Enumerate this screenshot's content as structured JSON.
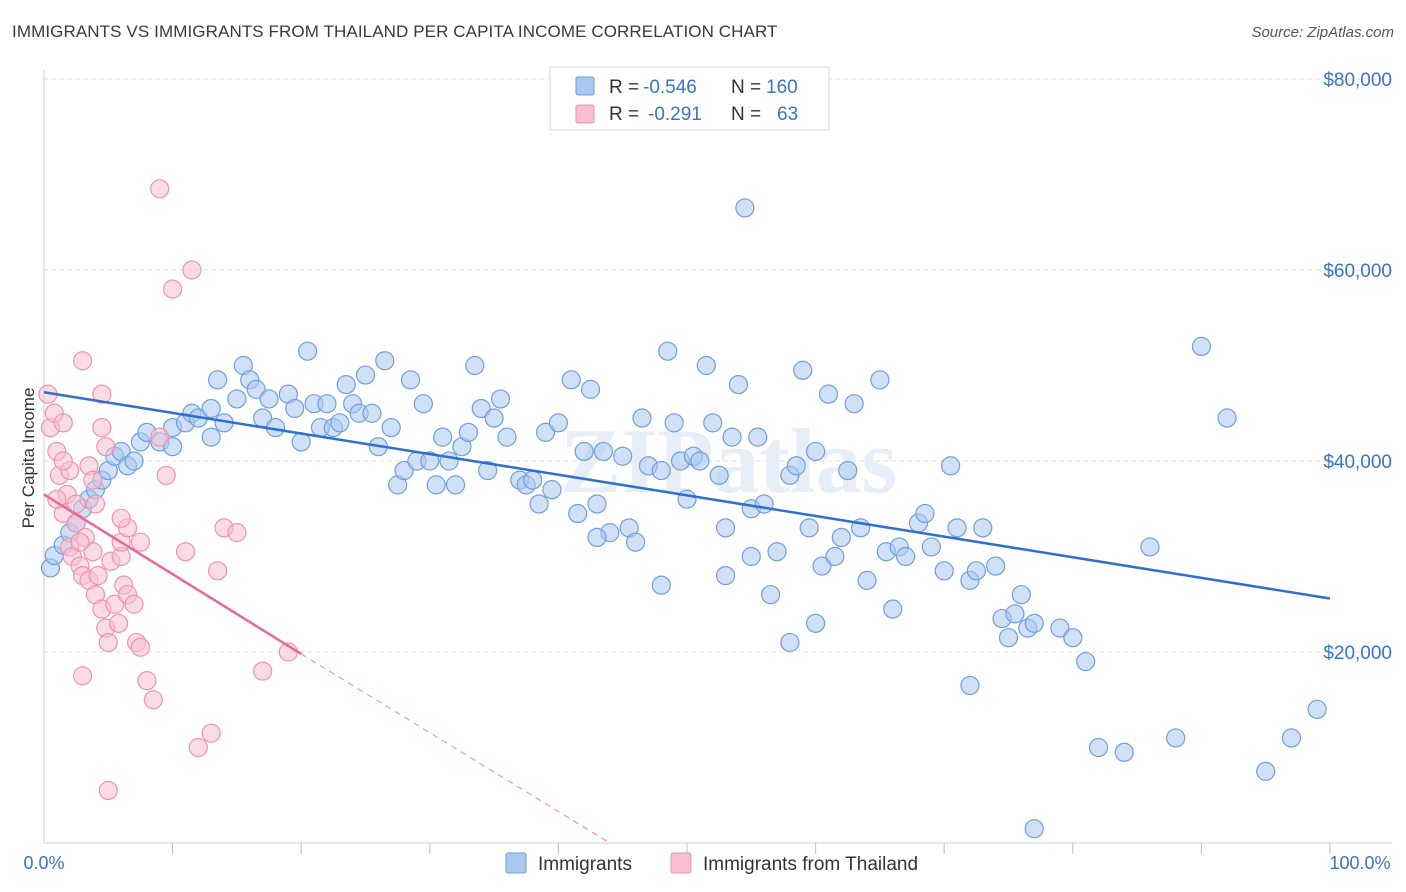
{
  "header": {
    "title": "IMMIGRANTS VS IMMIGRANTS FROM THAILAND PER CAPITA INCOME CORRELATION CHART",
    "source": "Source: ZipAtlas.com"
  },
  "watermark": "ZIPatlas",
  "legend_top": [
    {
      "r_label": "R =",
      "r_value": "-0.546",
      "n_label": "N =",
      "n_value": "160"
    },
    {
      "r_label": "R =",
      "r_value": "-0.291",
      "n_label": "N =",
      "n_value": "63"
    }
  ],
  "legend_bottom": [
    "Immigrants",
    "Immigrants from Thailand"
  ],
  "colors": {
    "blue_fill": "#a9c8f0",
    "blue_stroke": "#6f9fdd",
    "blue_line": "#2e6fd0",
    "pink_fill": "#f7bfd0",
    "pink_stroke": "#ee93b1",
    "pink_line": "#e8689a",
    "axis_text": "#3a74c4",
    "grid": "#dddddd"
  },
  "chart_data": {
    "type": "scatter",
    "title": "IMMIGRANTS VS IMMIGRANTS FROM THAILAND PER CAPITA INCOME CORRELATION CHART",
    "xlabel": "",
    "ylabel": "Per Capita Income",
    "xlim": [
      0,
      100
    ],
    "ylim": [
      0,
      80000
    ],
    "x_tick_labels": [
      "0.0%",
      "100.0%"
    ],
    "y_ticks": [
      20000,
      40000,
      60000,
      80000
    ],
    "y_tick_labels": [
      "$20,000",
      "$40,000",
      "$60,000",
      "$80,000"
    ],
    "grid": true,
    "legend_position": "top-center",
    "series": [
      {
        "name": "Immigrants",
        "r": -0.546,
        "n": 160,
        "trend": {
          "x": [
            0,
            100
          ],
          "y": [
            47200,
            25600
          ]
        },
        "points": [
          [
            0.5,
            28800
          ],
          [
            0.8,
            30100
          ],
          [
            1.5,
            31200
          ],
          [
            2.0,
            32500
          ],
          [
            2.5,
            33500
          ],
          [
            3,
            35000
          ],
          [
            3.5,
            36000
          ],
          [
            4,
            37000
          ],
          [
            4.5,
            38000
          ],
          [
            5,
            39000
          ],
          [
            5.5,
            40500
          ],
          [
            6,
            41000
          ],
          [
            6.5,
            39500
          ],
          [
            7,
            40000
          ],
          [
            7.5,
            42000
          ],
          [
            8,
            43000
          ],
          [
            9,
            42000
          ],
          [
            10,
            41500
          ],
          [
            10,
            43500
          ],
          [
            11,
            44000
          ],
          [
            11.5,
            45000
          ],
          [
            12,
            44500
          ],
          [
            13,
            45500
          ],
          [
            13,
            42500
          ],
          [
            13.5,
            48500
          ],
          [
            14,
            44000
          ],
          [
            15,
            46500
          ],
          [
            15.5,
            50000
          ],
          [
            16,
            48500
          ],
          [
            16.5,
            47500
          ],
          [
            17,
            44500
          ],
          [
            17.5,
            46500
          ],
          [
            18,
            43500
          ],
          [
            19,
            47000
          ],
          [
            19.5,
            45500
          ],
          [
            20,
            42000
          ],
          [
            20.5,
            51500
          ],
          [
            21,
            46000
          ],
          [
            21.5,
            43500
          ],
          [
            22,
            46000
          ],
          [
            22.5,
            43500
          ],
          [
            23,
            44000
          ],
          [
            23.5,
            48000
          ],
          [
            24,
            46000
          ],
          [
            24.5,
            45000
          ],
          [
            25,
            49000
          ],
          [
            25.5,
            45000
          ],
          [
            26,
            41500
          ],
          [
            26.5,
            50500
          ],
          [
            27,
            43500
          ],
          [
            27.5,
            37500
          ],
          [
            28,
            39000
          ],
          [
            28.5,
            48500
          ],
          [
            29,
            40000
          ],
          [
            29.5,
            46000
          ],
          [
            30,
            40000
          ],
          [
            30.5,
            37500
          ],
          [
            31,
            42500
          ],
          [
            31.5,
            40000
          ],
          [
            32,
            37500
          ],
          [
            32.5,
            41500
          ],
          [
            33,
            43000
          ],
          [
            33.5,
            50000
          ],
          [
            34,
            45500
          ],
          [
            34.5,
            39000
          ],
          [
            35,
            44500
          ],
          [
            35.5,
            46500
          ],
          [
            36,
            42500
          ],
          [
            37,
            38000
          ],
          [
            37.5,
            37500
          ],
          [
            38,
            38000
          ],
          [
            38.5,
            35500
          ],
          [
            39,
            43000
          ],
          [
            39.5,
            37000
          ],
          [
            40,
            44000
          ],
          [
            41,
            48500
          ],
          [
            41.5,
            34500
          ],
          [
            42,
            41000
          ],
          [
            42.5,
            47500
          ],
          [
            43,
            35500
          ],
          [
            43.5,
            41000
          ],
          [
            44,
            32500
          ],
          [
            45,
            40500
          ],
          [
            45.5,
            33000
          ],
          [
            46,
            31500
          ],
          [
            46.5,
            44500
          ],
          [
            47,
            39500
          ],
          [
            48,
            39000
          ],
          [
            48.5,
            51500
          ],
          [
            49,
            44000
          ],
          [
            49.5,
            40000
          ],
          [
            50,
            36000
          ],
          [
            50.5,
            40500
          ],
          [
            51,
            40000
          ],
          [
            51.5,
            50000
          ],
          [
            52,
            44000
          ],
          [
            52.5,
            38500
          ],
          [
            53,
            33000
          ],
          [
            53.5,
            42500
          ],
          [
            54,
            48000
          ],
          [
            54.5,
            66500
          ],
          [
            55,
            35000
          ],
          [
            55.5,
            42500
          ],
          [
            56,
            35500
          ],
          [
            56.5,
            26000
          ],
          [
            57,
            30500
          ],
          [
            58,
            38500
          ],
          [
            58.5,
            39500
          ],
          [
            59,
            49500
          ],
          [
            59.5,
            33000
          ],
          [
            60,
            41000
          ],
          [
            60.5,
            29000
          ],
          [
            61,
            47000
          ],
          [
            61.5,
            30000
          ],
          [
            62,
            32000
          ],
          [
            62.5,
            39000
          ],
          [
            63,
            46000
          ],
          [
            63.5,
            33000
          ],
          [
            64,
            27500
          ],
          [
            65,
            48500
          ],
          [
            65.5,
            30500
          ],
          [
            66,
            24500
          ],
          [
            66.5,
            31000
          ],
          [
            67,
            30000
          ],
          [
            68,
            33500
          ],
          [
            68.5,
            34500
          ],
          [
            69,
            31000
          ],
          [
            70,
            28500
          ],
          [
            70.5,
            39500
          ],
          [
            71,
            33000
          ],
          [
            72,
            27500
          ],
          [
            72.5,
            28500
          ],
          [
            73,
            33000
          ],
          [
            74,
            29000
          ],
          [
            74.5,
            23500
          ],
          [
            75,
            21500
          ],
          [
            75.5,
            24000
          ],
          [
            76,
            26000
          ],
          [
            76.5,
            22500
          ],
          [
            77,
            23000
          ],
          [
            79,
            22500
          ],
          [
            80,
            21500
          ],
          [
            81,
            19000
          ],
          [
            82,
            10000
          ],
          [
            84,
            9500
          ],
          [
            86,
            31000
          ],
          [
            88,
            11000
          ],
          [
            90,
            52000
          ],
          [
            92,
            44500
          ],
          [
            95,
            7500
          ],
          [
            97,
            11000
          ],
          [
            99,
            14000
          ],
          [
            77,
            1500
          ],
          [
            72,
            16500
          ],
          [
            60,
            23000
          ],
          [
            58,
            21000
          ],
          [
            55,
            30000
          ],
          [
            53,
            28000
          ],
          [
            48,
            27000
          ],
          [
            43,
            32000
          ]
        ]
      },
      {
        "name": "Immigrants from Thailand",
        "r": -0.291,
        "n": 63,
        "trend": {
          "x": [
            0,
            20
          ],
          "y": [
            36500,
            19800
          ]
        },
        "trend_dashed": {
          "x": [
            20,
            44
          ],
          "y": [
            19800,
            0
          ]
        },
        "points": [
          [
            0.3,
            47000
          ],
          [
            0.5,
            43500
          ],
          [
            0.8,
            45000
          ],
          [
            1,
            41000
          ],
          [
            1.2,
            38500
          ],
          [
            1.5,
            34500
          ],
          [
            1.8,
            36500
          ],
          [
            2,
            31000
          ],
          [
            2.2,
            30000
          ],
          [
            2.5,
            33500
          ],
          [
            2.8,
            29000
          ],
          [
            3,
            28000
          ],
          [
            3.2,
            32000
          ],
          [
            3.5,
            27500
          ],
          [
            3.8,
            30500
          ],
          [
            4,
            26000
          ],
          [
            4.2,
            28000
          ],
          [
            4.5,
            24500
          ],
          [
            4.8,
            22500
          ],
          [
            5,
            21000
          ],
          [
            5.2,
            29500
          ],
          [
            5.5,
            25000
          ],
          [
            5.8,
            23000
          ],
          [
            6,
            30000
          ],
          [
            6.2,
            27000
          ],
          [
            6.5,
            26000
          ],
          [
            7,
            25000
          ],
          [
            7.2,
            21000
          ],
          [
            7.5,
            20500
          ],
          [
            8,
            17000
          ],
          [
            8.5,
            15000
          ],
          [
            9,
            42500
          ],
          [
            9,
            68500
          ],
          [
            9.5,
            38500
          ],
          [
            10,
            58000
          ],
          [
            11,
            30500
          ],
          [
            11.5,
            60000
          ],
          [
            12,
            10000
          ],
          [
            13,
            11500
          ],
          [
            13.5,
            28500
          ],
          [
            14,
            33000
          ],
          [
            15,
            32500
          ],
          [
            17,
            18000
          ],
          [
            19,
            20000
          ],
          [
            4.5,
            47000
          ],
          [
            3,
            50500
          ],
          [
            2,
            39000
          ],
          [
            1.5,
            40000
          ],
          [
            2.5,
            35500
          ],
          [
            3.5,
            39500
          ],
          [
            4,
            35500
          ],
          [
            4.5,
            43500
          ],
          [
            6,
            31500
          ],
          [
            6.5,
            33000
          ],
          [
            7.5,
            31500
          ],
          [
            5,
            5500
          ],
          [
            3,
            17500
          ],
          [
            1,
            36000
          ],
          [
            1.5,
            44000
          ],
          [
            2.8,
            31500
          ],
          [
            3.8,
            38000
          ],
          [
            4.8,
            41500
          ],
          [
            6,
            34000
          ]
        ]
      }
    ]
  }
}
